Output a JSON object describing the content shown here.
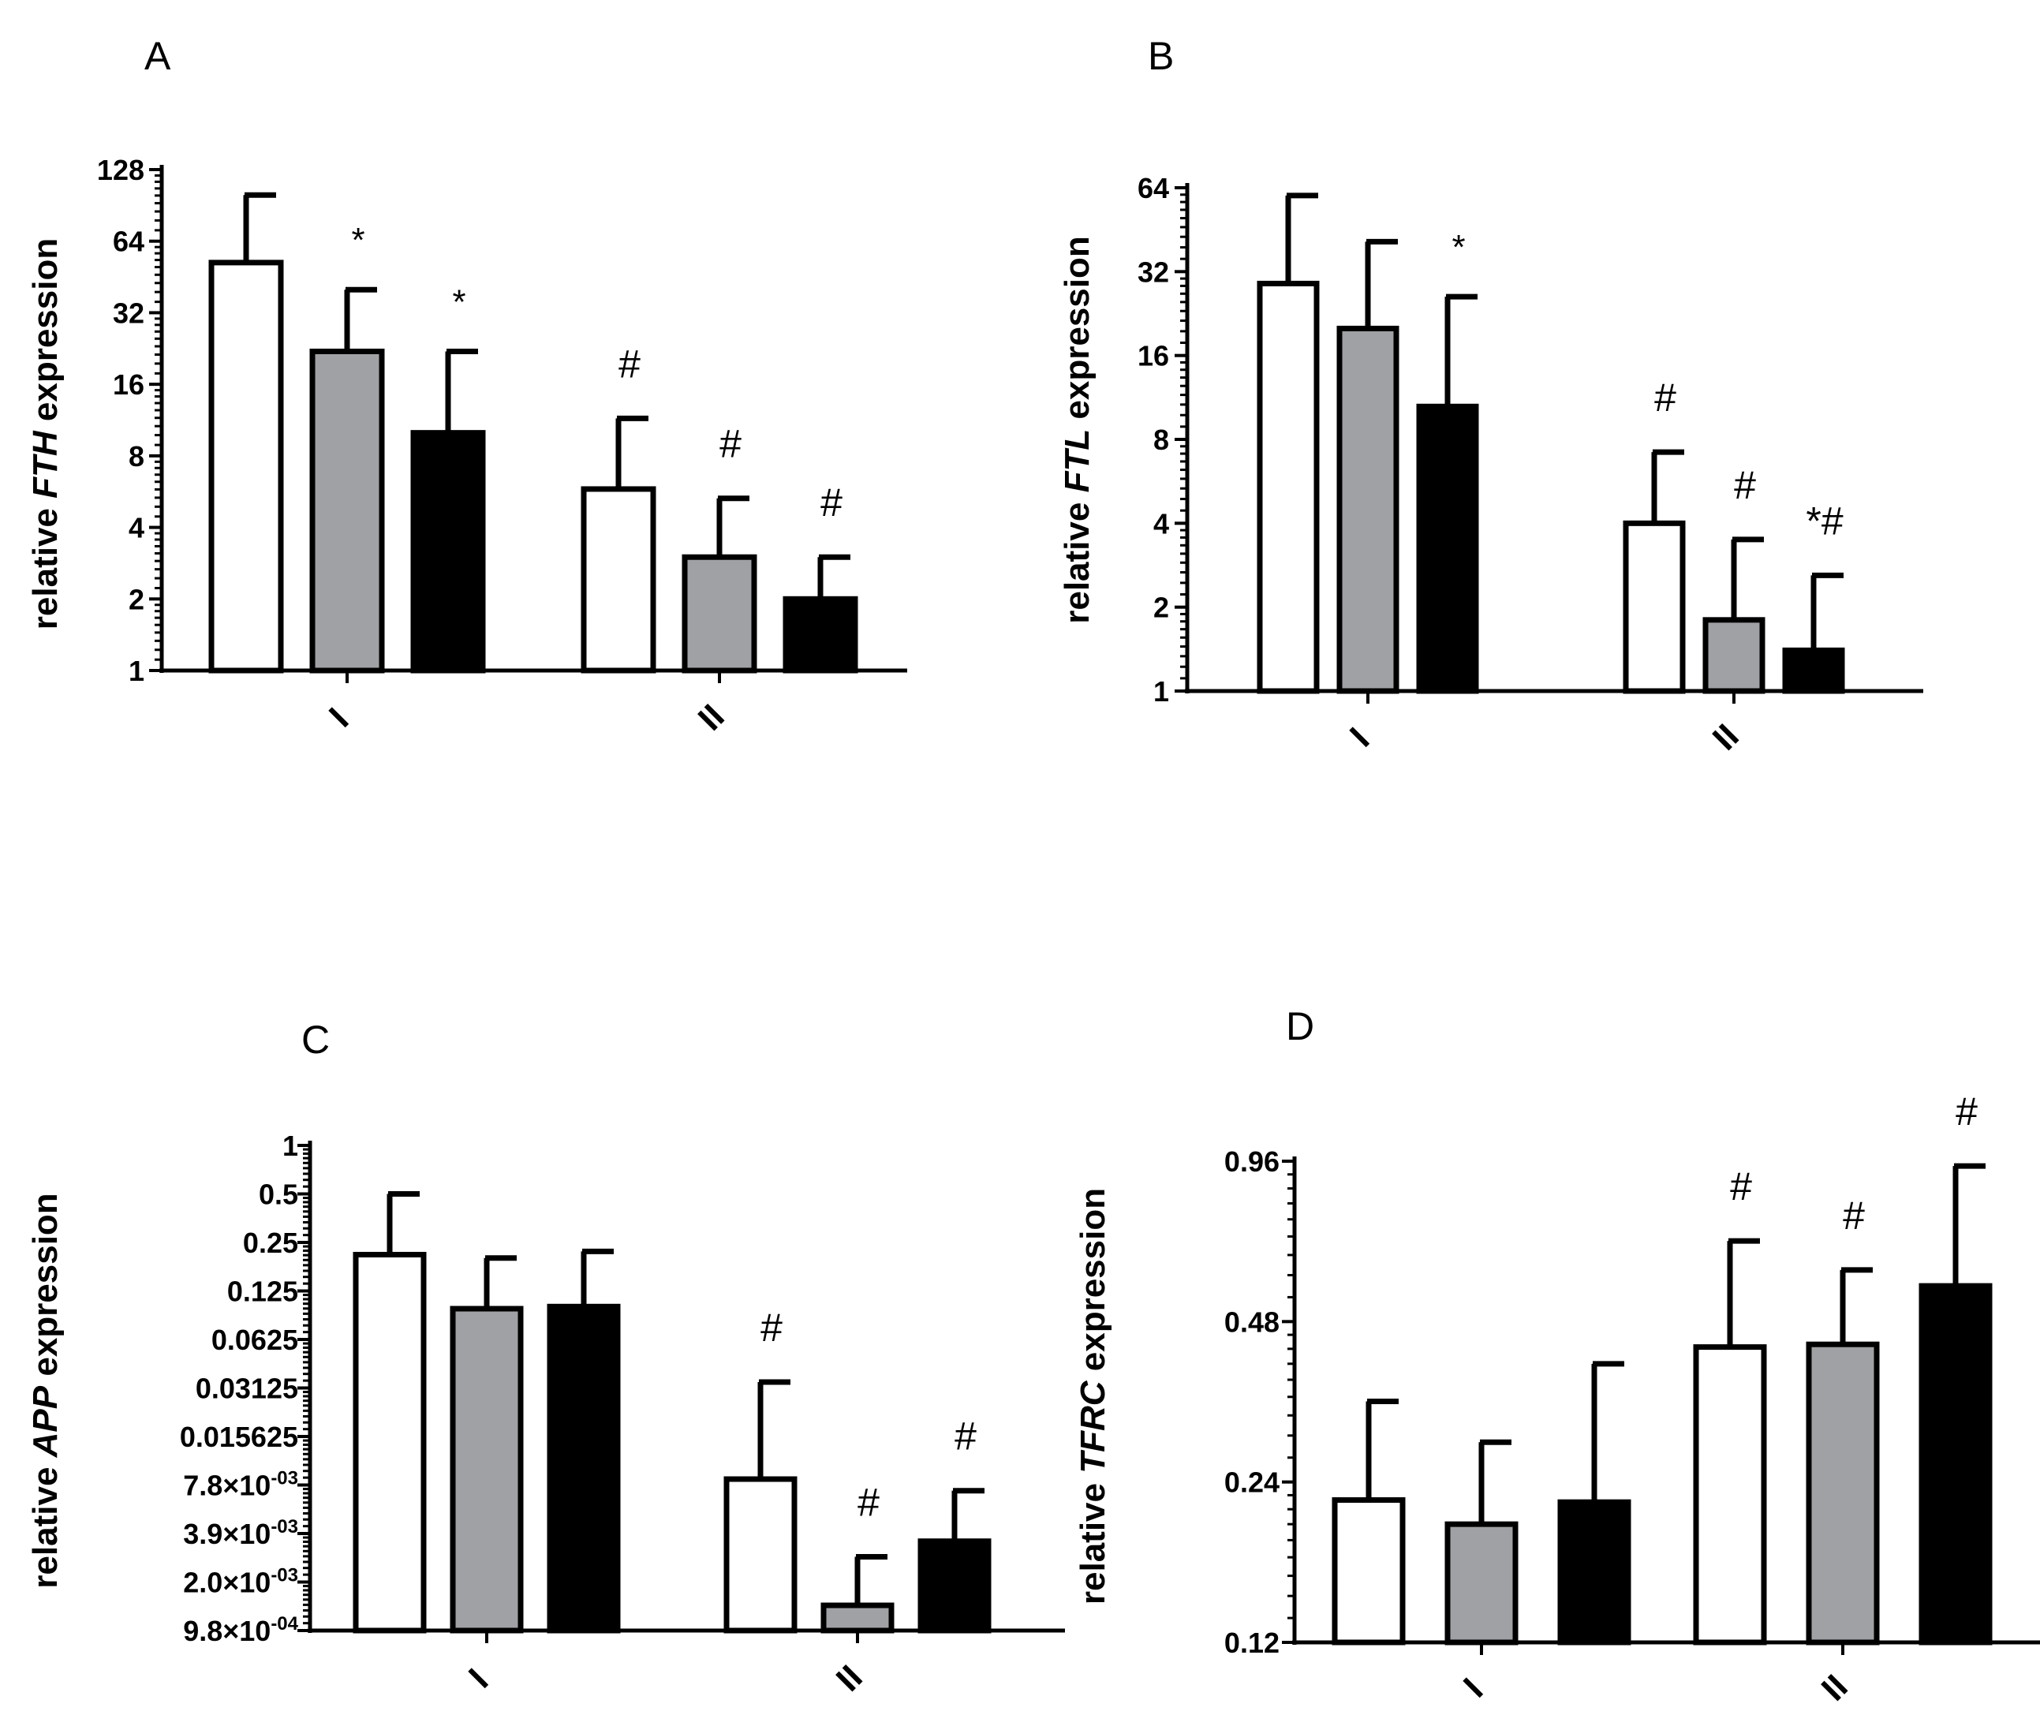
{
  "colors": {
    "control": "#ffffff",
    "treat1": "#a0a1a4",
    "treat2": "#000000",
    "stroke": "#000000"
  },
  "chart_data": [
    {
      "type": "bar",
      "panel": "A",
      "yscale": "log2",
      "ylabel_parts": [
        "relative ",
        "FTH",
        " expression"
      ],
      "yticks": [
        1,
        2,
        4,
        8,
        16,
        32,
        64,
        128
      ],
      "ytick_labels": [
        "1",
        "2",
        "4",
        "8",
        "16",
        "32",
        "64",
        "128"
      ],
      "ylim": [
        1,
        128
      ],
      "categories": [
        "I",
        "II"
      ],
      "series": [
        {
          "name": "white",
          "values": [
            52,
            5.8
          ],
          "errors": [
            100,
            11.5
          ],
          "annotations": [
            "",
            "#"
          ]
        },
        {
          "name": "grey",
          "values": [
            22,
            3.0
          ],
          "errors": [
            40,
            5.3
          ],
          "annotations": [
            "*",
            "#"
          ]
        },
        {
          "name": "black",
          "values": [
            10,
            2.0
          ],
          "errors": [
            22,
            3.0
          ],
          "annotations": [
            "*",
            "#"
          ]
        }
      ]
    },
    {
      "type": "bar",
      "panel": "B",
      "yscale": "log2",
      "ylabel_parts": [
        "relative ",
        "FTL",
        " expression"
      ],
      "yticks": [
        1,
        2,
        4,
        8,
        16,
        32,
        64
      ],
      "ytick_labels": [
        "1",
        "2",
        "4",
        "8",
        "16",
        "32",
        "64"
      ],
      "ylim": [
        1,
        64
      ],
      "categories": [
        "I",
        "II"
      ],
      "series": [
        {
          "name": "white",
          "values": [
            29,
            4.0
          ],
          "errors": [
            60,
            7.2
          ],
          "annotations": [
            "",
            "#"
          ]
        },
        {
          "name": "grey",
          "values": [
            20,
            1.8
          ],
          "errors": [
            41,
            3.5
          ],
          "annotations": [
            "",
            "#"
          ]
        },
        {
          "name": "black",
          "values": [
            10.5,
            1.4
          ],
          "errors": [
            26,
            2.6
          ],
          "annotations": [
            "*",
            "*#"
          ]
        }
      ]
    },
    {
      "type": "bar",
      "panel": "C",
      "yscale": "log2",
      "ylabel_parts": [
        "relative ",
        "APP",
        " expression"
      ],
      "yticks": [
        0.0009765625,
        0.001953125,
        0.00390625,
        0.0078125,
        0.015625,
        0.03125,
        0.0625,
        0.125,
        0.25,
        0.5,
        1
      ],
      "ytick_labels": [
        [
          "9.8",
          "×10",
          "-04"
        ],
        [
          "2.0",
          "×10",
          "-03"
        ],
        [
          "3.9",
          "×10",
          "-03"
        ],
        [
          "7.8",
          "×10",
          "-03"
        ],
        [
          "0.015625",
          "",
          ""
        ],
        [
          "0.03125",
          "",
          ""
        ],
        [
          "0.0625",
          "",
          ""
        ],
        [
          "0.125",
          "",
          ""
        ],
        [
          "0.25",
          "",
          ""
        ],
        [
          "0.5",
          "",
          ""
        ],
        [
          "1",
          "",
          ""
        ]
      ],
      "ylim": [
        0.0009765625,
        1
      ],
      "categories": [
        "I",
        "II"
      ],
      "series": [
        {
          "name": "white",
          "values": [
            0.21,
            0.0085
          ],
          "errors": [
            0.5,
            0.034
          ],
          "annotations": [
            "",
            "#"
          ]
        },
        {
          "name": "grey",
          "values": [
            0.097,
            0.0014
          ],
          "errors": [
            0.2,
            0.0028
          ],
          "annotations": [
            "",
            "#"
          ]
        },
        {
          "name": "black",
          "values": [
            0.1,
            0.0035
          ],
          "errors": [
            0.22,
            0.0072
          ],
          "annotations": [
            "",
            "#"
          ]
        }
      ]
    },
    {
      "type": "bar",
      "panel": "D",
      "yscale": "log2",
      "ylabel_parts": [
        "relative ",
        "TFRC",
        " expression"
      ],
      "yticks": [
        0.12,
        0.24,
        0.48,
        0.96
      ],
      "ytick_labels": [
        "0.12",
        "0.24",
        "0.48",
        "0.96"
      ],
      "ylim": [
        0.12,
        0.96
      ],
      "categories": [
        "I",
        "II"
      ],
      "series": [
        {
          "name": "white",
          "values": [
            0.222,
            0.43
          ],
          "errors": [
            0.34,
            0.68
          ],
          "annotations": [
            "",
            "#"
          ]
        },
        {
          "name": "grey",
          "values": [
            0.2,
            0.435
          ],
          "errors": [
            0.285,
            0.6
          ],
          "annotations": [
            "",
            "#"
          ]
        },
        {
          "name": "black",
          "values": [
            0.22,
            0.56
          ],
          "errors": [
            0.4,
            0.94
          ],
          "annotations": [
            "",
            "#"
          ]
        }
      ]
    }
  ]
}
